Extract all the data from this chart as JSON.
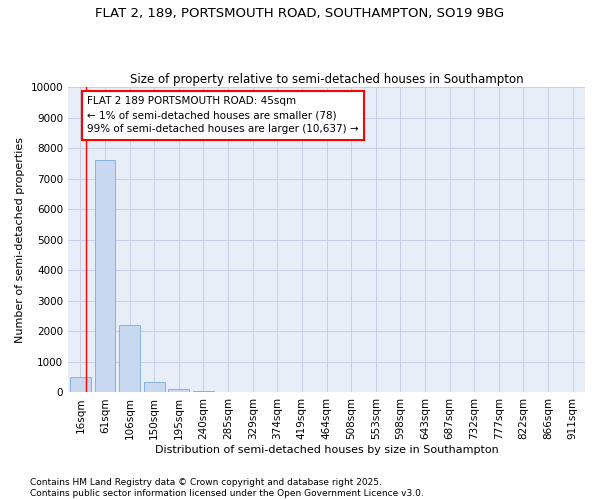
{
  "title": "FLAT 2, 189, PORTSMOUTH ROAD, SOUTHAMPTON, SO19 9BG",
  "subtitle": "Size of property relative to semi-detached houses in Southampton",
  "xlabel": "Distribution of semi-detached houses by size in Southampton",
  "ylabel": "Number of semi-detached properties",
  "categories": [
    "16sqm",
    "61sqm",
    "106sqm",
    "150sqm",
    "195sqm",
    "240sqm",
    "285sqm",
    "329sqm",
    "374sqm",
    "419sqm",
    "464sqm",
    "508sqm",
    "553sqm",
    "598sqm",
    "643sqm",
    "687sqm",
    "732sqm",
    "777sqm",
    "822sqm",
    "866sqm",
    "911sqm"
  ],
  "values": [
    500,
    7600,
    2200,
    350,
    100,
    50,
    0,
    0,
    0,
    0,
    0,
    0,
    0,
    0,
    0,
    0,
    0,
    0,
    0,
    0,
    0
  ],
  "bar_color": "#c8d8f0",
  "bar_edge_color": "#7aaad8",
  "annotation_text": "FLAT 2 189 PORTSMOUTH ROAD: 45sqm\n← 1% of semi-detached houses are smaller (78)\n99% of semi-detached houses are larger (10,637) →",
  "annotation_box_color": "white",
  "annotation_box_edge_color": "red",
  "vline_color": "red",
  "vline_x": 0.22,
  "ylim": [
    0,
    10000
  ],
  "yticks": [
    0,
    1000,
    2000,
    3000,
    4000,
    5000,
    6000,
    7000,
    8000,
    9000,
    10000
  ],
  "grid_color": "#c8d0e8",
  "background_color": "#e8eef8",
  "footer_text": "Contains HM Land Registry data © Crown copyright and database right 2025.\nContains public sector information licensed under the Open Government Licence v3.0.",
  "title_fontsize": 9.5,
  "subtitle_fontsize": 8.5,
  "xlabel_fontsize": 8,
  "ylabel_fontsize": 8,
  "tick_fontsize": 7.5,
  "footer_fontsize": 6.5,
  "annotation_fontsize": 7.5
}
